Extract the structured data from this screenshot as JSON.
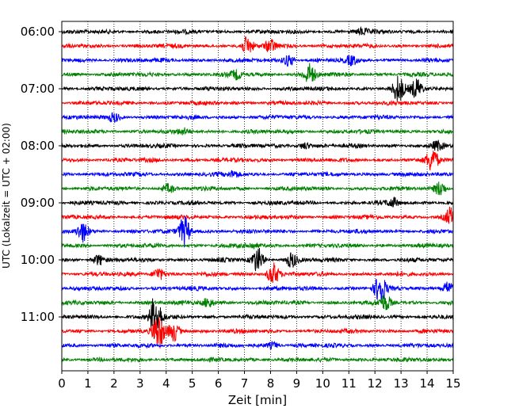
{
  "chart_data": {
    "type": "line",
    "title": "",
    "xlabel": "Zeit  [min]",
    "ylabel": "UTC (Lokalzeit = UTC + 02:00)",
    "xlim": [
      0,
      15
    ],
    "x_ticks": [
      "0",
      "1",
      "2",
      "3",
      "4",
      "5",
      "6",
      "7",
      "8",
      "9",
      "10",
      "11",
      "12",
      "13",
      "14",
      "15"
    ],
    "y_ticks": [
      "06:00",
      "07:00",
      "08:00",
      "09:00",
      "10:00",
      "11:00"
    ],
    "grid": "vertical-dotted",
    "trace_colors": [
      "#000000",
      "#ff0000",
      "#0000ff",
      "#008000"
    ],
    "traces": [
      {
        "start": "06:00",
        "events": [
          {
            "t": 11.5,
            "amp": 0.4
          }
        ]
      },
      {
        "start": "06:15",
        "events": [
          {
            "t": 7.1,
            "amp": 1.0
          },
          {
            "t": 8.0,
            "amp": 0.8
          }
        ]
      },
      {
        "start": "06:30",
        "events": [
          {
            "t": 8.7,
            "amp": 0.7
          },
          {
            "t": 11.1,
            "amp": 0.5
          }
        ]
      },
      {
        "start": "06:45",
        "events": [
          {
            "t": 6.7,
            "amp": 0.5
          },
          {
            "t": 9.5,
            "amp": 1.3
          }
        ]
      },
      {
        "start": "07:00",
        "events": [
          {
            "t": 12.9,
            "amp": 1.6
          },
          {
            "t": 13.6,
            "amp": 1.2
          }
        ]
      },
      {
        "start": "07:15",
        "events": []
      },
      {
        "start": "07:30",
        "events": [
          {
            "t": 2.0,
            "amp": 0.5
          }
        ]
      },
      {
        "start": "07:45",
        "events": [
          {
            "t": 4.7,
            "amp": 0.3
          }
        ]
      },
      {
        "start": "08:00",
        "events": [
          {
            "t": 9.3,
            "amp": 0.4
          },
          {
            "t": 14.4,
            "amp": 0.5
          }
        ]
      },
      {
        "start": "08:15",
        "events": [
          {
            "t": 14.2,
            "amp": 1.5
          }
        ]
      },
      {
        "start": "08:30",
        "events": [
          {
            "t": 6.6,
            "amp": 0.4
          }
        ]
      },
      {
        "start": "08:45",
        "events": [
          {
            "t": 4.1,
            "amp": 0.5
          },
          {
            "t": 14.5,
            "amp": 0.9
          }
        ]
      },
      {
        "start": "09:00",
        "events": [
          {
            "t": 12.7,
            "amp": 0.5
          }
        ]
      },
      {
        "start": "09:15",
        "events": [
          {
            "t": 14.9,
            "amp": 1.1
          }
        ]
      },
      {
        "start": "09:30",
        "events": [
          {
            "t": 0.8,
            "amp": 1.2
          },
          {
            "t": 4.7,
            "amp": 1.9
          }
        ]
      },
      {
        "start": "09:45",
        "events": [
          {
            "t": 7.3,
            "amp": 0.3
          }
        ]
      },
      {
        "start": "10:00",
        "events": [
          {
            "t": 1.4,
            "amp": 0.6
          },
          {
            "t": 7.5,
            "amp": 1.5
          },
          {
            "t": 8.8,
            "amp": 0.9
          }
        ]
      },
      {
        "start": "10:15",
        "events": [
          {
            "t": 3.7,
            "amp": 0.8
          },
          {
            "t": 8.1,
            "amp": 1.4
          }
        ]
      },
      {
        "start": "10:30",
        "events": [
          {
            "t": 12.2,
            "amp": 1.8
          },
          {
            "t": 14.8,
            "amp": 0.8
          }
        ]
      },
      {
        "start": "10:45",
        "events": [
          {
            "t": 5.6,
            "amp": 0.6
          },
          {
            "t": 12.4,
            "amp": 1.0
          }
        ]
      },
      {
        "start": "11:00",
        "events": [
          {
            "t": 3.6,
            "amp": 3.0
          }
        ]
      },
      {
        "start": "11:15",
        "events": [
          {
            "t": 3.7,
            "amp": 2.2
          },
          {
            "t": 4.3,
            "amp": 1.2
          }
        ]
      },
      {
        "start": "11:30",
        "events": [
          {
            "t": 8.1,
            "amp": 0.4
          }
        ]
      },
      {
        "start": "11:45",
        "events": []
      }
    ]
  }
}
